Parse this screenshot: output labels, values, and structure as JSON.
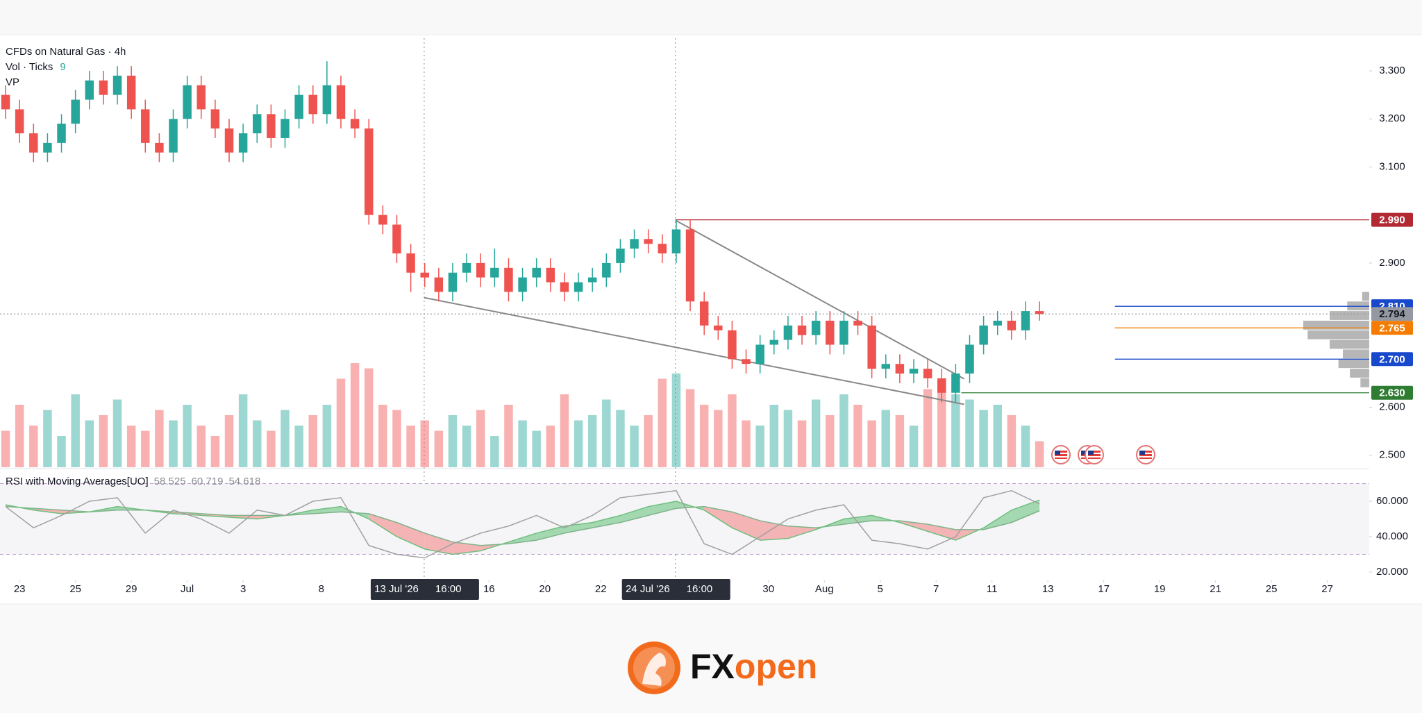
{
  "chart_data": {
    "type": "candlestick",
    "title": "CFDs on Natural Gas · 4h",
    "volume_title": "Vol · Ticks",
    "vol_last": 9,
    "profile_title": "VP",
    "xlim": [
      -0.7,
      48.3
    ],
    "ylim": [
      2.475,
      3.368
    ],
    "yticks": [
      {
        "value": 2.5,
        "label": "2.500"
      },
      {
        "value": 2.6,
        "label": "2.600"
      },
      {
        "value": 2.9,
        "label": "2.900"
      },
      {
        "value": 3.1,
        "label": "3.100"
      },
      {
        "value": 3.2,
        "label": "3.200"
      },
      {
        "value": 3.3,
        "label": "3.300"
      }
    ],
    "xticks": [
      {
        "value": 0,
        "label": "23"
      },
      {
        "value": 2,
        "label": "25"
      },
      {
        "value": 4,
        "label": "29"
      },
      {
        "value": 6,
        "label": "Jul"
      },
      {
        "value": 8,
        "label": "3"
      },
      {
        "value": 10.8,
        "label": "8"
      },
      {
        "value": 16.8,
        "label": "16"
      },
      {
        "value": 18.8,
        "label": "20"
      },
      {
        "value": 20.8,
        "label": "22"
      },
      {
        "value": 26.8,
        "label": "30"
      },
      {
        "value": 28.8,
        "label": "Aug"
      },
      {
        "value": 30.8,
        "label": "5"
      },
      {
        "value": 32.8,
        "label": "7"
      },
      {
        "value": 34.8,
        "label": "11"
      },
      {
        "value": 36.8,
        "label": "13"
      },
      {
        "value": 38.8,
        "label": "17"
      },
      {
        "value": 40.8,
        "label": "19"
      },
      {
        "value": 42.8,
        "label": "21"
      },
      {
        "value": 44.8,
        "label": "25"
      },
      {
        "value": 46.8,
        "label": "27"
      }
    ],
    "up_color": "#26a69a",
    "down_color": "#ef5350",
    "x": [
      -0.5,
      0,
      0.5,
      1,
      1.5,
      2,
      2.5,
      3,
      3.5,
      4,
      4.5,
      5,
      5.5,
      6,
      6.5,
      7,
      7.5,
      8,
      8.5,
      9,
      9.5,
      10,
      10.5,
      11,
      11.5,
      12,
      12.5,
      13,
      13.5,
      14,
      14.5,
      15,
      15.5,
      16,
      16.5,
      17,
      17.5,
      18,
      18.5,
      19,
      19.5,
      20,
      20.5,
      21,
      21.5,
      22,
      22.5,
      23,
      23.5,
      24,
      24.5,
      25,
      25.5,
      26,
      26.5,
      27,
      27.5,
      28,
      28.5,
      29,
      29.5,
      30,
      30.5,
      31,
      31.5,
      32,
      32.5,
      33,
      33.5,
      34,
      34.5,
      35,
      35.5,
      36,
      36.5
    ],
    "open": [
      3.25,
      3.22,
      3.17,
      3.13,
      3.15,
      3.19,
      3.24,
      3.28,
      3.25,
      3.29,
      3.22,
      3.15,
      3.13,
      3.2,
      3.27,
      3.22,
      3.18,
      3.13,
      3.17,
      3.21,
      3.16,
      3.2,
      3.25,
      3.21,
      3.27,
      3.2,
      3.18,
      3.0,
      2.98,
      2.92,
      2.88,
      2.87,
      2.84,
      2.88,
      2.9,
      2.87,
      2.89,
      2.84,
      2.87,
      2.89,
      2.86,
      2.84,
      2.86,
      2.87,
      2.9,
      2.93,
      2.95,
      2.94,
      2.92,
      2.97,
      2.82,
      2.77,
      2.76,
      2.7,
      2.69,
      2.73,
      2.74,
      2.77,
      2.75,
      2.78,
      2.73,
      2.78,
      2.77,
      2.68,
      2.69,
      2.67,
      2.68,
      2.66,
      2.63,
      2.67,
      2.73,
      2.77,
      2.78,
      2.76,
      2.8
    ],
    "high": [
      3.27,
      3.24,
      3.19,
      3.17,
      3.21,
      3.26,
      3.3,
      3.3,
      3.31,
      3.31,
      3.24,
      3.17,
      3.22,
      3.29,
      3.29,
      3.24,
      3.2,
      3.19,
      3.23,
      3.23,
      3.22,
      3.27,
      3.27,
      3.32,
      3.29,
      3.22,
      3.2,
      3.02,
      3.0,
      2.94,
      2.9,
      2.89,
      2.9,
      2.92,
      2.92,
      2.93,
      2.91,
      2.89,
      2.91,
      2.91,
      2.88,
      2.88,
      2.89,
      2.92,
      2.95,
      2.97,
      2.97,
      2.96,
      2.99,
      2.99,
      2.84,
      2.79,
      2.78,
      2.72,
      2.75,
      2.76,
      2.79,
      2.79,
      2.8,
      2.8,
      2.8,
      2.8,
      2.79,
      2.71,
      2.71,
      2.7,
      2.7,
      2.68,
      2.69,
      2.75,
      2.79,
      2.8,
      2.8,
      2.82,
      2.82
    ],
    "low": [
      3.2,
      3.15,
      3.11,
      3.11,
      3.13,
      3.17,
      3.22,
      3.23,
      3.23,
      3.2,
      3.13,
      3.11,
      3.11,
      3.18,
      3.2,
      3.16,
      3.11,
      3.11,
      3.15,
      3.14,
      3.14,
      3.18,
      3.19,
      3.19,
      3.18,
      3.16,
      2.98,
      2.96,
      2.9,
      2.84,
      2.85,
      2.82,
      2.82,
      2.86,
      2.85,
      2.85,
      2.82,
      2.82,
      2.85,
      2.84,
      2.82,
      2.82,
      2.84,
      2.85,
      2.88,
      2.91,
      2.92,
      2.9,
      2.9,
      2.8,
      2.75,
      2.74,
      2.68,
      2.67,
      2.67,
      2.71,
      2.72,
      2.73,
      2.73,
      2.71,
      2.71,
      2.75,
      2.66,
      2.66,
      2.65,
      2.65,
      2.64,
      2.61,
      2.61,
      2.65,
      2.71,
      2.75,
      2.74,
      2.74,
      2.78
    ],
    "close": [
      3.22,
      3.17,
      3.13,
      3.15,
      3.19,
      3.24,
      3.28,
      3.25,
      3.29,
      3.22,
      3.15,
      3.13,
      3.2,
      3.27,
      3.22,
      3.18,
      3.13,
      3.17,
      3.21,
      3.16,
      3.2,
      3.25,
      3.21,
      3.27,
      3.2,
      3.18,
      3.0,
      2.98,
      2.92,
      2.88,
      2.87,
      2.84,
      2.88,
      2.9,
      2.87,
      2.89,
      2.84,
      2.87,
      2.89,
      2.86,
      2.84,
      2.86,
      2.87,
      2.9,
      2.93,
      2.95,
      2.94,
      2.92,
      2.97,
      2.82,
      2.77,
      2.76,
      2.7,
      2.69,
      2.73,
      2.74,
      2.77,
      2.75,
      2.78,
      2.73,
      2.78,
      2.77,
      2.68,
      2.69,
      2.67,
      2.68,
      2.66,
      2.63,
      2.67,
      2.73,
      2.77,
      2.78,
      2.76,
      2.8,
      2.794
    ],
    "volume": [
      35,
      60,
      40,
      55,
      30,
      70,
      45,
      50,
      65,
      40,
      35,
      55,
      45,
      60,
      40,
      30,
      50,
      70,
      45,
      35,
      55,
      40,
      50,
      60,
      85,
      100,
      95,
      60,
      55,
      40,
      45,
      35,
      50,
      40,
      55,
      30,
      60,
      45,
      35,
      40,
      70,
      45,
      50,
      65,
      55,
      40,
      50,
      85,
      90,
      75,
      60,
      55,
      70,
      45,
      40,
      60,
      55,
      45,
      65,
      50,
      70,
      60,
      45,
      55,
      50,
      40,
      75,
      80,
      70,
      65,
      55,
      60,
      50,
      40,
      25
    ],
    "levels": [
      {
        "value": 2.99,
        "label": "2.990",
        "color": "#b22833",
        "x_start": 23.47
      },
      {
        "value": 2.81,
        "label": "2.810",
        "color": "#1848cc",
        "x_start": 39.2
      },
      {
        "value": 2.794,
        "label": "2.794",
        "color": "#9598a1",
        "x_start": -0.7
      },
      {
        "value": 2.765,
        "label": "2.765",
        "color": "#f57c00",
        "x_start": 39.2
      },
      {
        "value": 2.7,
        "label": "2.700",
        "color": "#1848cc",
        "x_start": 39.2
      },
      {
        "value": 2.63,
        "label": "2.630",
        "color": "#2e7d32",
        "x_start": 33.7
      }
    ],
    "trendlines": [
      {
        "x": [
          23.47,
          33.8
        ],
        "y": [
          2.989,
          2.659
        ]
      },
      {
        "x": [
          14.48,
          33.8
        ],
        "y": [
          2.828,
          2.606
        ]
      }
    ],
    "trendline_color": "#888888",
    "markers": [
      {
        "x": 14.48,
        "date": "13 Jul '26",
        "time": "16:00"
      },
      {
        "x": 23.47,
        "date": "24 Jul '26",
        "time": "16:00"
      }
    ],
    "profile": {
      "prices": [
        2.83,
        2.81,
        2.79,
        2.77,
        2.75,
        2.73,
        2.71,
        2.69,
        2.67,
        2.65
      ],
      "values": [
        8,
        25,
        45,
        75,
        70,
        45,
        30,
        35,
        22,
        10
      ],
      "color": "#9e9e9e"
    },
    "rsi": {
      "title": "RSI with Moving Averages[UO]",
      "ylim": [
        15.3,
        75.7
      ],
      "yticks": [
        {
          "value": 20,
          "label": "20.000"
        },
        {
          "value": 40,
          "label": "40.000"
        },
        {
          "value": 60,
          "label": "60.000"
        }
      ],
      "band": [
        30,
        70
      ],
      "x": [
        -0.5,
        0.5,
        1.5,
        2.5,
        3.5,
        4.5,
        5.5,
        6.5,
        7.5,
        8.5,
        9.5,
        10.5,
        11.5,
        12.5,
        13.5,
        14.5,
        15.5,
        16.5,
        17.5,
        18.5,
        19.5,
        20.5,
        21.5,
        22.5,
        23.5,
        24.5,
        25.5,
        26.5,
        27.5,
        28.5,
        29.5,
        30.5,
        31.5,
        32.5,
        33.5,
        34.5,
        35.5,
        36.5
      ],
      "rsi": [
        57,
        45,
        52,
        60,
        62,
        42,
        55,
        50,
        42,
        55,
        52,
        60,
        62,
        35,
        30,
        28,
        36,
        42,
        46,
        52,
        45,
        52,
        62,
        64,
        66,
        36,
        30,
        40,
        50,
        55,
        58,
        38,
        36,
        33,
        40,
        62,
        66,
        58.525
      ],
      "ma_fast": [
        58,
        55,
        53,
        54,
        57,
        55,
        53,
        52,
        51,
        50,
        52,
        55,
        57,
        50,
        40,
        33,
        30,
        32,
        37,
        42,
        46,
        48,
        52,
        57,
        60,
        55,
        45,
        38,
        39,
        44,
        50,
        52,
        48,
        43,
        38,
        45,
        55,
        60.719
      ],
      "ma_slow": [
        57,
        56,
        55,
        54,
        55,
        55,
        54,
        53,
        52,
        52,
        52,
        53,
        54,
        53,
        48,
        42,
        37,
        35,
        36,
        38,
        42,
        45,
        48,
        52,
        56,
        57,
        54,
        49,
        46,
        45,
        47,
        49,
        49,
        47,
        44,
        44,
        48,
        54.618
      ],
      "rsi_color": "#a0a0a0",
      "up_fill": "#8fd19e",
      "down_fill": "#f4a3a3"
    },
    "logo": {
      "text_a": "FX",
      "text_b": "open"
    }
  }
}
